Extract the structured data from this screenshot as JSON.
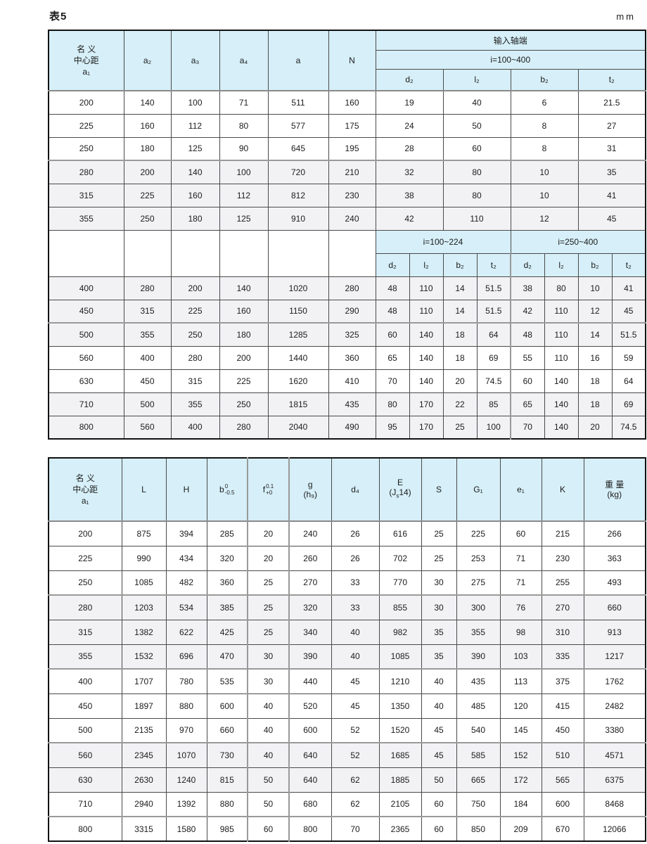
{
  "page": {
    "title": "表5",
    "unit": "mm"
  },
  "table1": {
    "header": {
      "a1": {
        "line1": "名  义",
        "line2": "中心距",
        "line3": "a₁"
      },
      "cols": [
        "a₂",
        "a₃",
        "a₄",
        "a",
        "N"
      ],
      "group": "输入轴端",
      "ratio_all": "i=100~400",
      "sub_cols": [
        "d₂",
        "l₂",
        "b₂",
        "t₂"
      ],
      "ratio_left": "i=100~224",
      "ratio_right": "i=250~400"
    },
    "rows_top": [
      {
        "cells": [
          "200",
          "140",
          "100",
          "71",
          "511",
          "160",
          "19",
          "40",
          "6",
          "21.5"
        ],
        "shaded": false
      },
      {
        "cells": [
          "225",
          "160",
          "112",
          "80",
          "577",
          "175",
          "24",
          "50",
          "8",
          "27"
        ],
        "shaded": false
      },
      {
        "cells": [
          "250",
          "180",
          "125",
          "90",
          "645",
          "195",
          "28",
          "60",
          "8",
          "31"
        ],
        "shaded": false
      },
      {
        "cells": [
          "280",
          "200",
          "140",
          "100",
          "720",
          "210",
          "32",
          "80",
          "10",
          "35"
        ],
        "shaded": true,
        "thick_top": true
      },
      {
        "cells": [
          "315",
          "225",
          "160",
          "112",
          "812",
          "230",
          "38",
          "80",
          "10",
          "41"
        ],
        "shaded": true
      },
      {
        "cells": [
          "355",
          "250",
          "180",
          "125",
          "910",
          "240",
          "42",
          "110",
          "12",
          "45"
        ],
        "shaded": true
      }
    ],
    "rows_bottom": [
      {
        "cells": [
          "400",
          "280",
          "200",
          "140",
          "1020",
          "280",
          "48",
          "110",
          "14",
          "51.5",
          "38",
          "80",
          "10",
          "41"
        ],
        "shaded": true
      },
      {
        "cells": [
          "450",
          "315",
          "225",
          "160",
          "1150",
          "290",
          "48",
          "110",
          "14",
          "51.5",
          "42",
          "110",
          "12",
          "45"
        ],
        "shaded": true
      },
      {
        "cells": [
          "500",
          "355",
          "250",
          "180",
          "1285",
          "325",
          "60",
          "140",
          "18",
          "64",
          "48",
          "110",
          "14",
          "51.5"
        ],
        "shaded": true,
        "thick_top": true
      },
      {
        "cells": [
          "560",
          "400",
          "280",
          "200",
          "1440",
          "360",
          "65",
          "140",
          "18",
          "69",
          "55",
          "110",
          "16",
          "59"
        ],
        "shaded": false
      },
      {
        "cells": [
          "630",
          "450",
          "315",
          "225",
          "1620",
          "410",
          "70",
          "140",
          "20",
          "74.5",
          "60",
          "140",
          "18",
          "64"
        ],
        "shaded": false
      },
      {
        "cells": [
          "710",
          "500",
          "355",
          "250",
          "1815",
          "435",
          "80",
          "170",
          "22",
          "85",
          "65",
          "140",
          "18",
          "69"
        ],
        "shaded": true
      },
      {
        "cells": [
          "800",
          "560",
          "400",
          "280",
          "2040",
          "490",
          "95",
          "170",
          "25",
          "100",
          "70",
          "140",
          "20",
          "74.5"
        ],
        "shaded": true
      }
    ]
  },
  "table2": {
    "header": {
      "a1": {
        "line1": "名  义",
        "line2": "中心距",
        "line3": "a₁"
      },
      "L": "L",
      "H": "H",
      "b": {
        "base": "b",
        "sup": "0",
        "sub": "-0.5"
      },
      "f": {
        "base": "f",
        "sup": "0.1",
        "sub": "+0"
      },
      "g": {
        "line1": "g",
        "line2": "(h₉)"
      },
      "d4": "d₄",
      "E": {
        "line1": "E",
        "l2a": "(J",
        "l2b": "s",
        "l2c": "14)"
      },
      "S": "S",
      "G1": "G₁",
      "e1": "e₁",
      "K": "K",
      "weight": {
        "line1": "重 量",
        "line2": "(kg)"
      }
    },
    "rows": [
      {
        "cells": [
          "200",
          "875",
          "394",
          "285",
          "20",
          "240",
          "26",
          "616",
          "25",
          "225",
          "60",
          "215",
          "266"
        ],
        "shaded": false
      },
      {
        "cells": [
          "225",
          "990",
          "434",
          "320",
          "20",
          "260",
          "26",
          "702",
          "25",
          "253",
          "71",
          "230",
          "363"
        ],
        "shaded": false
      },
      {
        "cells": [
          "250",
          "1085",
          "482",
          "360",
          "25",
          "270",
          "33",
          "770",
          "30",
          "275",
          "71",
          "255",
          "493"
        ],
        "shaded": false
      },
      {
        "cells": [
          "280",
          "1203",
          "534",
          "385",
          "25",
          "320",
          "33",
          "855",
          "30",
          "300",
          "76",
          "270",
          "660"
        ],
        "shaded": true,
        "thick_top": true
      },
      {
        "cells": [
          "315",
          "1382",
          "622",
          "425",
          "25",
          "340",
          "40",
          "982",
          "35",
          "355",
          "98",
          "310",
          "913"
        ],
        "shaded": true
      },
      {
        "cells": [
          "355",
          "1532",
          "696",
          "470",
          "30",
          "390",
          "40",
          "1085",
          "35",
          "390",
          "103",
          "335",
          "1217"
        ],
        "shaded": true
      },
      {
        "cells": [
          "400",
          "1707",
          "780",
          "535",
          "30",
          "440",
          "45",
          "1210",
          "40",
          "435",
          "113",
          "375",
          "1762"
        ],
        "shaded": false,
        "thick_top": true
      },
      {
        "cells": [
          "450",
          "1897",
          "880",
          "600",
          "40",
          "520",
          "45",
          "1350",
          "40",
          "485",
          "120",
          "415",
          "2482"
        ],
        "shaded": false
      },
      {
        "cells": [
          "500",
          "2135",
          "970",
          "660",
          "40",
          "600",
          "52",
          "1520",
          "45",
          "540",
          "145",
          "450",
          "3380"
        ],
        "shaded": false
      },
      {
        "cells": [
          "560",
          "2345",
          "1070",
          "730",
          "40",
          "640",
          "52",
          "1685",
          "45",
          "585",
          "152",
          "510",
          "4571"
        ],
        "shaded": true,
        "thick_top": true
      },
      {
        "cells": [
          "630",
          "2630",
          "1240",
          "815",
          "50",
          "640",
          "62",
          "1885",
          "50",
          "665",
          "172",
          "565",
          "6375"
        ],
        "shaded": true
      },
      {
        "cells": [
          "710",
          "2940",
          "1392",
          "880",
          "50",
          "680",
          "62",
          "2105",
          "60",
          "750",
          "184",
          "600",
          "8468"
        ],
        "shaded": false
      },
      {
        "cells": [
          "800",
          "3315",
          "1580",
          "985",
          "60",
          "800",
          "70",
          "2365",
          "60",
          "850",
          "209",
          "670",
          "12066"
        ],
        "shaded": false,
        "thick_top": true
      }
    ]
  }
}
